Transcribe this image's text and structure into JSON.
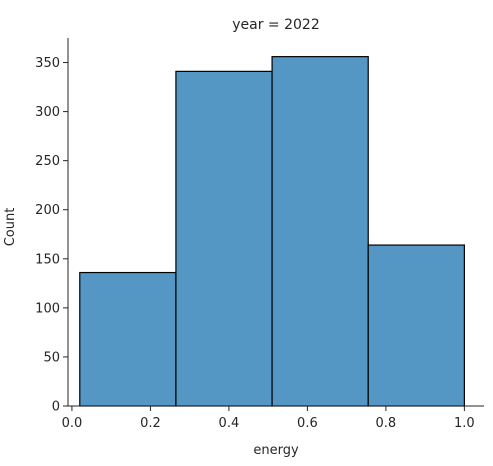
{
  "chart_data": {
    "type": "bar",
    "title": "year = 2022",
    "xlabel": "energy",
    "ylabel": "Count",
    "bins": [
      {
        "x0": 0.02,
        "x1": 0.265,
        "count": 136
      },
      {
        "x0": 0.265,
        "x1": 0.51,
        "count": 341
      },
      {
        "x0": 0.51,
        "x1": 0.755,
        "count": 356
      },
      {
        "x0": 0.755,
        "x1": 1.0,
        "count": 164
      }
    ],
    "xlim": [
      -0.01,
      1.05
    ],
    "ylim": [
      0,
      375
    ],
    "xticks": [
      0.0,
      0.2,
      0.4,
      0.6,
      0.8,
      1.0
    ],
    "xtick_labels": [
      "0.0",
      "0.2",
      "0.4",
      "0.6",
      "0.8",
      "1.0"
    ],
    "yticks": [
      0,
      50,
      100,
      150,
      200,
      250,
      300,
      350
    ],
    "ytick_labels": [
      "0",
      "50",
      "100",
      "150",
      "200",
      "250",
      "300",
      "350"
    ],
    "grid": false,
    "bar_color": "#5497c5",
    "edge_color": "#000000",
    "axis_color": "#262626"
  }
}
